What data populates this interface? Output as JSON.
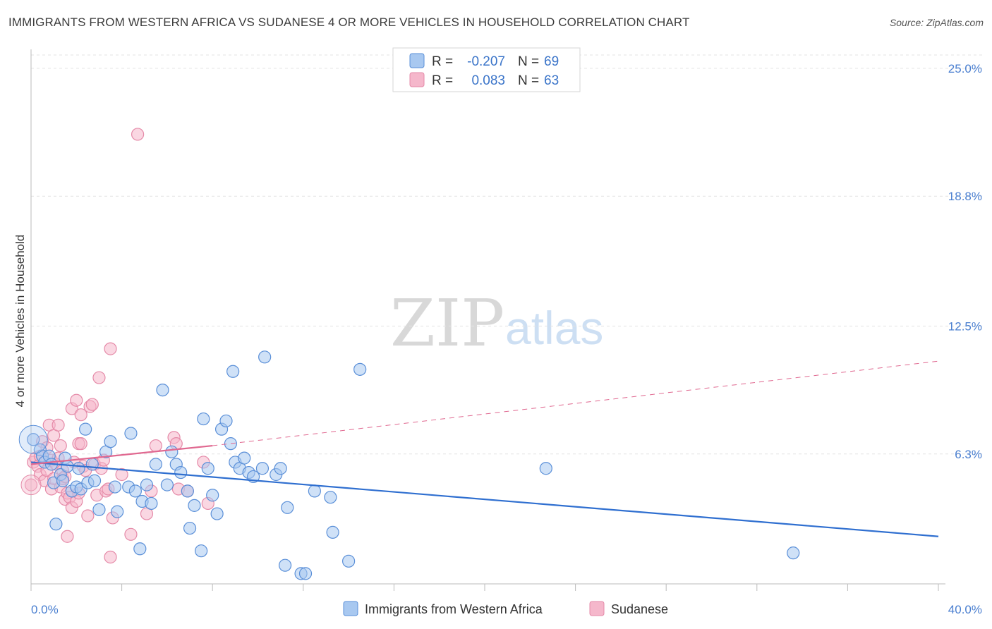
{
  "title": "IMMIGRANTS FROM WESTERN AFRICA VS SUDANESE 4 OR MORE VEHICLES IN HOUSEHOLD CORRELATION CHART",
  "source": "Source: ZipAtlas.com",
  "watermark": {
    "zip": "ZIP",
    "atlas": "atlas"
  },
  "legend": {
    "r_label": "R =",
    "n_label": "N =",
    "series1": {
      "r": "-0.207",
      "n": "69"
    },
    "series2": {
      "r": "0.083",
      "n": "63"
    }
  },
  "colors": {
    "blue_fill": "#a8c8f0",
    "blue_stroke": "#5a8fd8",
    "blue_line": "#2f6fd0",
    "pink_fill": "#f5b7cb",
    "pink_stroke": "#e58aa8",
    "pink_line": "#e06890",
    "tick_color": "#4a7fd0"
  },
  "chart_data": {
    "type": "scatter",
    "title": "IMMIGRANTS FROM WESTERN AFRICA VS SUDANESE 4 OR MORE VEHICLES IN HOUSEHOLD CORRELATION CHART",
    "xlabel": "",
    "ylabel": "4 or more Vehicles in Household",
    "xlim": [
      0,
      40
    ],
    "ylim": [
      0,
      26.5
    ],
    "x_tick_labels": [
      "0.0%",
      "40.0%"
    ],
    "y_ticks": [
      6.3,
      12.5,
      18.8,
      25.0
    ],
    "y_tick_labels": [
      "6.3%",
      "12.5%",
      "18.8%",
      "25.0%"
    ],
    "grid": true,
    "series": [
      {
        "name": "Immigrants from Western Africa",
        "color": "blue",
        "r": -0.207,
        "n": 69,
        "trend": {
          "x": [
            0,
            40
          ],
          "y": [
            5.9,
            2.3
          ],
          "style": "solid"
        },
        "points": [
          [
            0.1,
            7.0
          ],
          [
            0.4,
            6.5
          ],
          [
            0.5,
            6.2
          ],
          [
            0.6,
            5.9
          ],
          [
            0.8,
            6.2
          ],
          [
            0.9,
            5.8
          ],
          [
            1.0,
            4.9
          ],
          [
            1.1,
            2.9
          ],
          [
            1.3,
            5.3
          ],
          [
            1.4,
            5.0
          ],
          [
            1.5,
            6.1
          ],
          [
            1.6,
            5.7
          ],
          [
            1.8,
            4.5
          ],
          [
            2.0,
            4.7
          ],
          [
            2.1,
            5.6
          ],
          [
            2.2,
            4.6
          ],
          [
            2.4,
            7.5
          ],
          [
            2.5,
            4.9
          ],
          [
            2.7,
            5.8
          ],
          [
            2.8,
            5.0
          ],
          [
            3.0,
            3.6
          ],
          [
            3.3,
            6.4
          ],
          [
            3.5,
            6.9
          ],
          [
            3.7,
            4.7
          ],
          [
            3.8,
            3.5
          ],
          [
            4.3,
            4.7
          ],
          [
            4.4,
            7.3
          ],
          [
            4.6,
            4.5
          ],
          [
            4.8,
            1.7
          ],
          [
            4.9,
            4.0
          ],
          [
            5.1,
            4.8
          ],
          [
            5.3,
            3.9
          ],
          [
            5.5,
            5.8
          ],
          [
            5.8,
            9.4
          ],
          [
            6.0,
            4.8
          ],
          [
            6.2,
            6.4
          ],
          [
            6.4,
            5.8
          ],
          [
            6.6,
            5.4
          ],
          [
            6.9,
            4.5
          ],
          [
            7.0,
            2.7
          ],
          [
            7.2,
            3.8
          ],
          [
            7.5,
            1.6
          ],
          [
            7.6,
            8.0
          ],
          [
            7.8,
            5.6
          ],
          [
            8.0,
            4.3
          ],
          [
            8.2,
            3.4
          ],
          [
            8.4,
            7.5
          ],
          [
            8.6,
            7.9
          ],
          [
            8.8,
            6.8
          ],
          [
            8.9,
            10.3
          ],
          [
            9.0,
            5.9
          ],
          [
            9.2,
            5.6
          ],
          [
            9.4,
            6.1
          ],
          [
            9.6,
            5.4
          ],
          [
            9.8,
            5.2
          ],
          [
            10.2,
            5.6
          ],
          [
            10.3,
            11.0
          ],
          [
            10.8,
            5.3
          ],
          [
            11.0,
            5.6
          ],
          [
            11.3,
            3.7
          ],
          [
            11.2,
            0.9
          ],
          [
            11.9,
            0.5
          ],
          [
            12.1,
            0.5
          ],
          [
            12.5,
            4.5
          ],
          [
            13.2,
            4.2
          ],
          [
            13.3,
            2.5
          ],
          [
            14.0,
            1.1
          ],
          [
            14.5,
            10.4
          ],
          [
            22.7,
            5.6
          ],
          [
            33.6,
            1.5
          ]
        ]
      },
      {
        "name": "Sudanese",
        "color": "pink",
        "r": 0.083,
        "n": 63,
        "trend": {
          "x": [
            0,
            8.0
          ],
          "y": [
            5.8,
            6.7
          ],
          "style": "solid"
        },
        "trend_extended": {
          "x": [
            8.0,
            40
          ],
          "y": [
            6.7,
            10.8
          ],
          "style": "dashed"
        },
        "points": [
          [
            0.0,
            4.8
          ],
          [
            0.1,
            5.9
          ],
          [
            0.2,
            6.1
          ],
          [
            0.3,
            5.7
          ],
          [
            0.4,
            5.3
          ],
          [
            0.4,
            6.2
          ],
          [
            0.5,
            6.9
          ],
          [
            0.6,
            5.0
          ],
          [
            0.7,
            5.5
          ],
          [
            0.7,
            6.6
          ],
          [
            0.8,
            7.7
          ],
          [
            0.9,
            6.0
          ],
          [
            0.9,
            4.6
          ],
          [
            1.0,
            7.2
          ],
          [
            1.0,
            5.1
          ],
          [
            1.1,
            5.8
          ],
          [
            1.2,
            6.1
          ],
          [
            1.2,
            7.7
          ],
          [
            1.3,
            4.7
          ],
          [
            1.3,
            6.7
          ],
          [
            1.4,
            5.5
          ],
          [
            1.4,
            5.1
          ],
          [
            1.5,
            5.2
          ],
          [
            1.5,
            4.1
          ],
          [
            1.6,
            4.4
          ],
          [
            1.6,
            2.3
          ],
          [
            1.7,
            4.2
          ],
          [
            1.8,
            8.5
          ],
          [
            1.8,
            3.7
          ],
          [
            1.9,
            5.9
          ],
          [
            2.0,
            8.9
          ],
          [
            2.0,
            4.0
          ],
          [
            2.1,
            6.8
          ],
          [
            2.1,
            4.4
          ],
          [
            2.2,
            6.8
          ],
          [
            2.2,
            8.2
          ],
          [
            2.3,
            5.7
          ],
          [
            2.4,
            5.5
          ],
          [
            2.5,
            3.3
          ],
          [
            2.6,
            8.6
          ],
          [
            2.7,
            8.7
          ],
          [
            2.8,
            5.8
          ],
          [
            2.9,
            4.3
          ],
          [
            3.0,
            10.0
          ],
          [
            3.1,
            5.6
          ],
          [
            3.2,
            6.0
          ],
          [
            3.3,
            4.5
          ],
          [
            3.4,
            4.6
          ],
          [
            3.5,
            11.4
          ],
          [
            3.6,
            3.2
          ],
          [
            3.5,
            1.3
          ],
          [
            4.0,
            5.3
          ],
          [
            4.4,
            2.4
          ],
          [
            4.7,
            21.8
          ],
          [
            5.1,
            3.4
          ],
          [
            5.3,
            4.5
          ],
          [
            5.5,
            6.7
          ],
          [
            6.3,
            7.1
          ],
          [
            6.4,
            6.8
          ],
          [
            6.5,
            4.6
          ],
          [
            6.9,
            4.5
          ],
          [
            7.6,
            5.9
          ],
          [
            7.8,
            3.9
          ]
        ]
      }
    ]
  },
  "bottom_legend": {
    "series1": "Immigrants from Western Africa",
    "series2": "Sudanese"
  }
}
